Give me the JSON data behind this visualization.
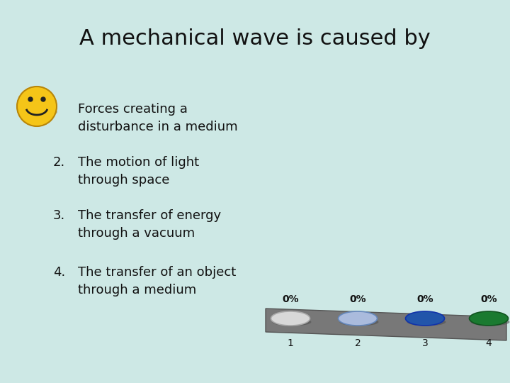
{
  "title": "A mechanical wave is caused by",
  "title_fontsize": 22,
  "bg_color": "#cde8e5",
  "items": [
    "Forces creating a\ndisturbance in a medium",
    "The motion of light\nthrough space",
    "The transfer of energy\nthrough a vacuum",
    "The transfer of an object\nthrough a medium"
  ],
  "item_numbers": [
    "",
    "2.",
    "3.",
    "4."
  ],
  "item_fontsize": 13,
  "smiley_color": "#f5c518",
  "smiley_outline": "#b8860b",
  "poll_platform_color": "#787878",
  "poll_platform_edge": "#555555",
  "poll_buttons_colors": [
    "#d8d8d8",
    "#aabbdd",
    "#2255aa",
    "#1a7a30"
  ],
  "poll_buttons_edge_colors": [
    "#aaaaaa",
    "#6688bb",
    "#1133aa",
    "#115520"
  ],
  "poll_pct_fontsize": 10,
  "poll_num_fontsize": 10
}
